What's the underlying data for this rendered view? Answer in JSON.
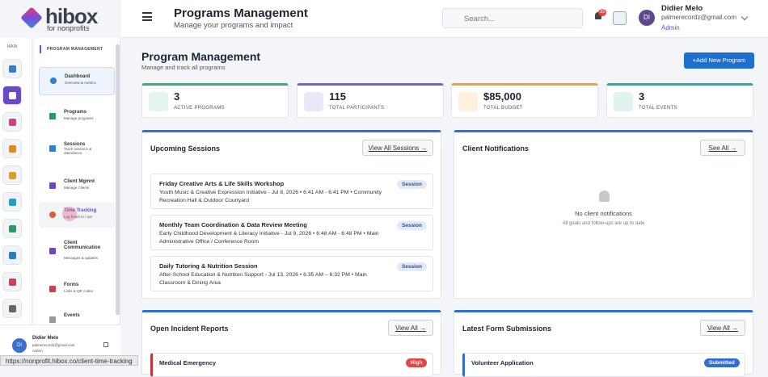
{
  "logo": {
    "name": "hibox",
    "tagline": "for nonprofits"
  },
  "rail": {
    "label": "MAIN"
  },
  "sidebar": {
    "section": "PROGRAM MANAGEMENT",
    "items": [
      {
        "title": "Dashboard",
        "sub": "Overview & metrics"
      },
      {
        "title": "Programs",
        "sub": "Manage programs"
      },
      {
        "title": "Sessions",
        "sub": "Track sessions & attendance"
      },
      {
        "title": "Client Mgmnt",
        "sub": "Manage Clients"
      },
      {
        "title": "Time Tracking",
        "sub": "Log hours in / out"
      },
      {
        "title": "Client Communication",
        "sub": "Messages & updates"
      },
      {
        "title": "Forms",
        "sub": "Links & QR codes"
      },
      {
        "title": "Events",
        "sub": ""
      }
    ],
    "user": {
      "initials": "DI",
      "name": "Didier Melo",
      "email": "palmerecordz@gmail.com",
      "role": "Admin"
    }
  },
  "status_url": "https://nonprofit.hibox.co/client-time-tracking",
  "header": {
    "title": "Programs Management",
    "subtitle": "Manage your programs and impact",
    "search": "Search...",
    "badge": "35",
    "initials": "DI",
    "name": "Didier Melo",
    "email": "palmerecordz@gmail.com",
    "role": "Admin"
  },
  "page": {
    "title": "Program Management",
    "subtitle": "Manage and track all programs",
    "button": "+Add New Program"
  },
  "stats": [
    {
      "value": "3",
      "label": "ACTIVE PROGRAMS"
    },
    {
      "value": "115",
      "label": "TOTAL PARTICIPANTS"
    },
    {
      "value": "$85,000",
      "label": "TOTAL BUDGET"
    },
    {
      "value": "3",
      "label": "TOTAL EVENTS"
    }
  ],
  "sessions": {
    "title": "Upcoming Sessions",
    "button": "View All Sessions →",
    "items": [
      {
        "title": "Friday Creative Arts & Life Skills Workshop",
        "detail": "Youth Music & Creative Expression Initiative - Jul 8, 2026 • 6:41 AM - 6:41 PM • Community Recreation Hall & Outdoor Courtyard",
        "badge": "Session"
      },
      {
        "title": "Monthly Team Coordination & Data Review Meeting",
        "detail": "Early Childhood Development & Literacy Initiative - Jul 9, 2026 • 6:48 AM - 6:48 PM • Main Administrative Office / Conference Room",
        "badge": "Session"
      },
      {
        "title": "Daily Tutoring & Nutrition Session",
        "detail": "After-School Education & Nutrition Support - Jul 13, 2026 • 6:35 AM – 6:32 PM • Main Classroom & Dining Area",
        "badge": "Session"
      }
    ]
  },
  "notifications": {
    "title": "Client Notifications",
    "button": "See All →",
    "empty_title": "No client notifications",
    "empty_text": "All goals and follow-ups are up to date"
  },
  "incidents": {
    "title": "Open Incident Reports",
    "button": "View All →",
    "items": [
      {
        "title": "Medical Emergency",
        "badge": "High"
      }
    ]
  },
  "forms": {
    "title": "Latest Form Submissions",
    "button": "View All →",
    "items": [
      {
        "title": "Volunteer Application",
        "badge": "Submitted"
      }
    ]
  }
}
